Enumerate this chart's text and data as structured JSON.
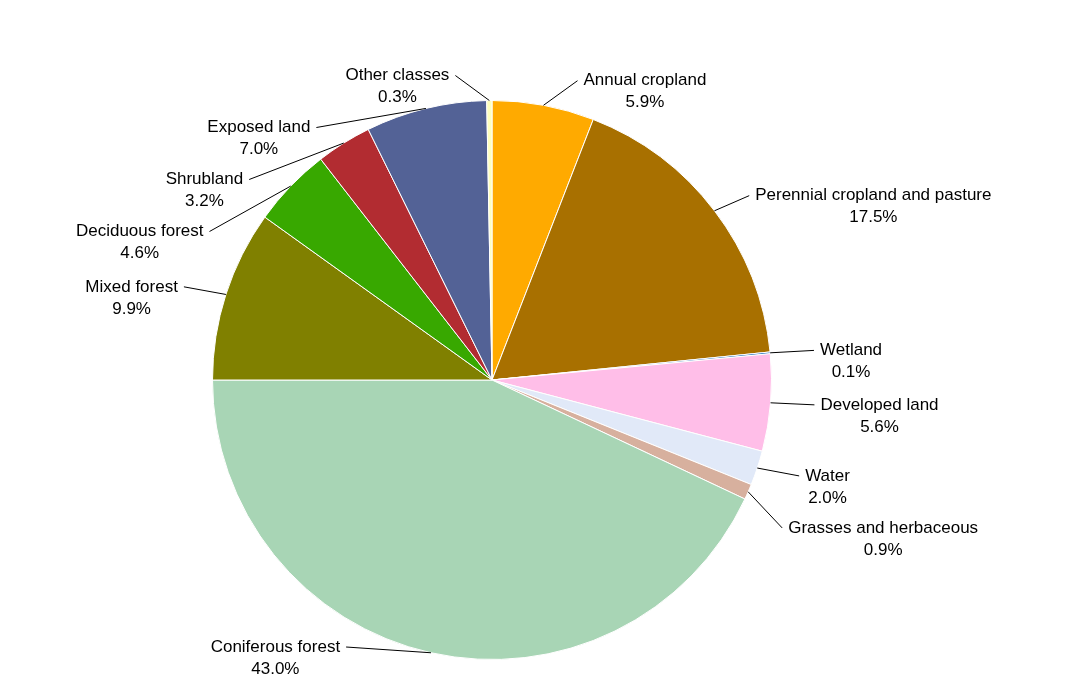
{
  "chart_data": {
    "type": "pie",
    "categories": [
      "Annual cropland",
      "Perennial cropland and pasture",
      "Wetland",
      "Developed land",
      "Water",
      "Grasses and herbaceous",
      "Coniferous forest",
      "Mixed forest",
      "Deciduous forest",
      "Shrubland",
      "Exposed land",
      "Other classes"
    ],
    "values": [
      5.9,
      17.5,
      0.1,
      5.6,
      2.0,
      0.9,
      43.0,
      9.9,
      4.6,
      3.2,
      7.0,
      0.3
    ],
    "value_labels": [
      "5.9%",
      "17.5%",
      "0.1%",
      "5.6%",
      "2.0%",
      "0.9%",
      "43.0%",
      "9.9%",
      "4.6%",
      "3.2%",
      "7.0%",
      "0.3%"
    ],
    "colors": [
      "#ffaa00",
      "#a87000",
      "#0a5fb4",
      "#ffbee8",
      "#e1e9f8",
      "#d7b09e",
      "#a8d5b5",
      "#808000",
      "#38a800",
      "#b22c31",
      "#536296",
      "#ffffbe"
    ]
  }
}
